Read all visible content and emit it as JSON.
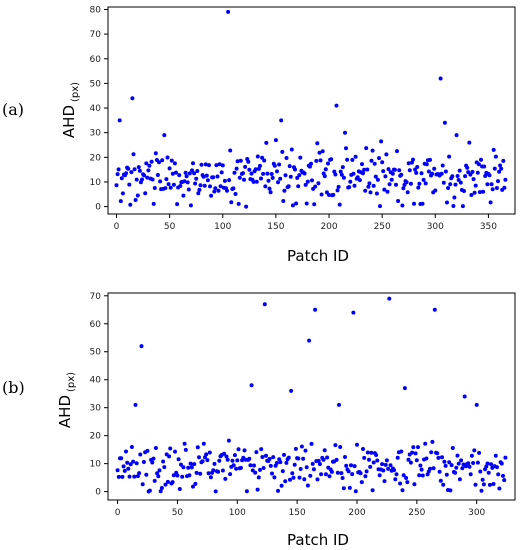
{
  "chart_data": [
    {
      "type": "scatter",
      "panel_label": "(a)",
      "xlabel": "Patch ID",
      "ylabel_main": "AHD",
      "ylabel_unit": "(px)",
      "xlim": [
        -8,
        375
      ],
      "ylim": [
        -3,
        81
      ],
      "xticks": [
        0,
        50,
        100,
        150,
        200,
        250,
        300,
        350
      ],
      "yticks": [
        0,
        10,
        20,
        30,
        40,
        50,
        60,
        70,
        80
      ],
      "marker_color": "#0000ff",
      "outliers": [
        {
          "x": 3,
          "y": 35
        },
        {
          "x": 15,
          "y": 44
        },
        {
          "x": 45,
          "y": 29
        },
        {
          "x": 105,
          "y": 79
        },
        {
          "x": 155,
          "y": 35
        },
        {
          "x": 150,
          "y": 27
        },
        {
          "x": 207,
          "y": 41
        },
        {
          "x": 215,
          "y": 30
        },
        {
          "x": 305,
          "y": 52
        },
        {
          "x": 309,
          "y": 34
        },
        {
          "x": 320,
          "y": 29
        },
        {
          "x": 355,
          "y": 23
        }
      ],
      "n_points": 367,
      "base_level": 12,
      "spread": 5
    },
    {
      "type": "scatter",
      "panel_label": "(b)",
      "xlabel": "Patch ID",
      "ylabel_main": "AHD",
      "ylabel_unit": "(px)",
      "xlim": [
        -8,
        332
      ],
      "ylim": [
        -3,
        71
      ],
      "xticks": [
        0,
        50,
        100,
        150,
        200,
        250,
        300
      ],
      "yticks": [
        0,
        10,
        20,
        30,
        40,
        50,
        60,
        70
      ],
      "marker_color": "#0000ff",
      "outliers": [
        {
          "x": 20,
          "y": 52
        },
        {
          "x": 15,
          "y": 31
        },
        {
          "x": 112,
          "y": 38
        },
        {
          "x": 123,
          "y": 67
        },
        {
          "x": 145,
          "y": 36
        },
        {
          "x": 160,
          "y": 54
        },
        {
          "x": 165,
          "y": 65
        },
        {
          "x": 197,
          "y": 64
        },
        {
          "x": 227,
          "y": 69
        },
        {
          "x": 240,
          "y": 37
        },
        {
          "x": 265,
          "y": 65
        },
        {
          "x": 290,
          "y": 34
        },
        {
          "x": 300,
          "y": 31
        },
        {
          "x": 185,
          "y": 31
        }
      ],
      "n_points": 325,
      "base_level": 9,
      "spread": 4
    }
  ]
}
